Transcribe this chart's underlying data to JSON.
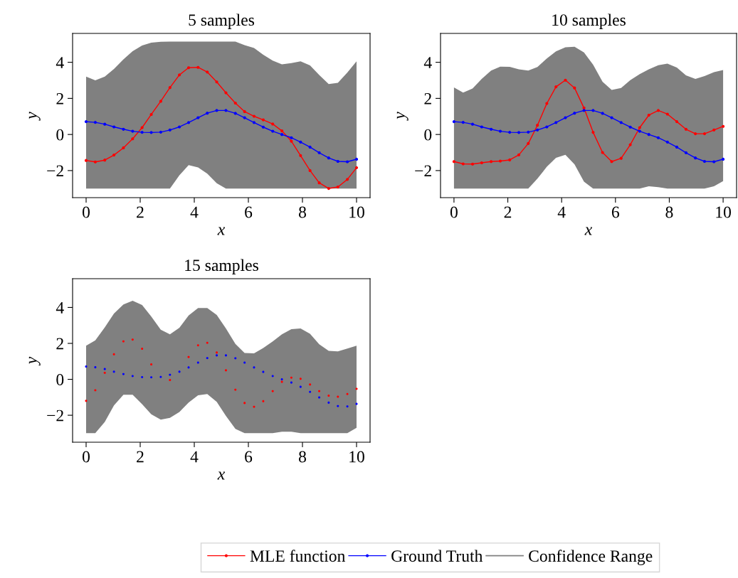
{
  "chart_data": [
    {
      "type": "line",
      "title": "5 samples",
      "xlabel": "x",
      "ylabel": "y",
      "marker": "circle",
      "line_style": "solid",
      "grid": false,
      "legend": "bottom",
      "x": [
        0,
        0.34,
        0.69,
        1.03,
        1.38,
        1.72,
        2.07,
        2.41,
        2.76,
        3.1,
        3.45,
        3.79,
        4.14,
        4.48,
        4.83,
        5.17,
        5.52,
        5.86,
        6.21,
        6.55,
        6.9,
        7.24,
        7.59,
        7.93,
        8.28,
        8.62,
        8.97,
        9.31,
        9.66,
        10
      ],
      "xlim": [
        -0.5,
        10.5
      ],
      "xticks": [
        0,
        2,
        4,
        6,
        8,
        10
      ],
      "ylim": [
        -3.5,
        5.6
      ],
      "yticks": [
        -2,
        0,
        2,
        4
      ],
      "series": [
        {
          "name": "MLE function",
          "color": "#ff0000",
          "values": [
            -1.44,
            -1.52,
            -1.42,
            -1.14,
            -0.74,
            -0.24,
            0.38,
            1.11,
            1.84,
            2.6,
            3.3,
            3.7,
            3.72,
            3.46,
            2.91,
            2.31,
            1.74,
            1.27,
            1.01,
            0.81,
            0.58,
            0.2,
            -0.37,
            -1.17,
            -2.0,
            -2.68,
            -2.99,
            -2.91,
            -2.49,
            -1.84
          ]
        },
        {
          "name": "Ground Truth",
          "color": "#0000ff",
          "values": [
            0.71,
            0.67,
            0.57,
            0.42,
            0.29,
            0.18,
            0.12,
            0.11,
            0.13,
            0.25,
            0.42,
            0.66,
            0.93,
            1.18,
            1.33,
            1.33,
            1.17,
            0.93,
            0.66,
            0.41,
            0.18,
            0.0,
            -0.18,
            -0.42,
            -0.7,
            -1.01,
            -1.3,
            -1.49,
            -1.51,
            -1.37
          ]
        },
        {
          "name": "Confidence Range",
          "color": "#808080",
          "values": [
            null,
            null,
            null,
            null,
            null,
            null,
            null,
            null,
            null,
            null,
            null,
            null,
            null,
            null,
            null,
            null,
            null,
            null,
            null,
            null,
            null,
            null,
            null,
            null,
            null,
            null,
            null,
            null,
            null,
            null
          ],
          "lower": [
            -3,
            -3,
            -3,
            -3,
            -3,
            -3,
            -3,
            -3,
            -3,
            -3,
            -2.26,
            -1.7,
            -1.83,
            -2.17,
            -2.7,
            -3,
            -3,
            -3,
            -3,
            -3,
            -3,
            -3,
            -3,
            -3,
            -3,
            -3,
            -3,
            -3,
            -3,
            -3
          ],
          "upper": [
            3.21,
            3.0,
            3.21,
            3.63,
            4.16,
            4.62,
            4.93,
            5.09,
            5.14,
            5.15,
            5.15,
            5.15,
            5.15,
            5.15,
            5.15,
            5.15,
            5.15,
            4.95,
            4.79,
            4.42,
            4.09,
            3.89,
            3.96,
            4.05,
            3.83,
            3.3,
            2.79,
            2.86,
            3.43,
            4.05
          ]
        }
      ]
    },
    {
      "type": "line",
      "title": "10 samples",
      "xlabel": "x",
      "ylabel": "y",
      "marker": "circle",
      "line_style": "solid",
      "grid": false,
      "x": [
        0,
        0.34,
        0.69,
        1.03,
        1.38,
        1.72,
        2.07,
        2.41,
        2.76,
        3.1,
        3.45,
        3.79,
        4.14,
        4.48,
        4.83,
        5.17,
        5.52,
        5.86,
        6.21,
        6.55,
        6.9,
        7.24,
        7.59,
        7.93,
        8.28,
        8.62,
        8.97,
        9.31,
        9.66,
        10
      ],
      "xlim": [
        -0.5,
        10.5
      ],
      "xticks": [
        0,
        2,
        4,
        6,
        8,
        10
      ],
      "ylim": [
        -3.5,
        5.6
      ],
      "yticks": [
        -2,
        0,
        2,
        4
      ],
      "series": [
        {
          "color": "#808080",
          "values": [
            null,
            null,
            null,
            null,
            null,
            null,
            null,
            null,
            null,
            null,
            null,
            null,
            null,
            null,
            null,
            null,
            null,
            null,
            null,
            null,
            null,
            null,
            null,
            null,
            null,
            null,
            null,
            null,
            null,
            null
          ],
          "lower": [
            -3,
            -3,
            -3,
            -3,
            -3,
            -3,
            -3,
            -3,
            -3,
            -2.45,
            -1.79,
            -1.29,
            -1.13,
            -1.66,
            -2.61,
            -3,
            -3,
            -3,
            -3,
            -3,
            -3,
            -2.87,
            -2.92,
            -3,
            -3,
            -3,
            -3,
            -3,
            -2.87,
            -2.58
          ],
          "upper": [
            2.61,
            2.32,
            2.55,
            3.08,
            3.54,
            3.76,
            3.75,
            3.61,
            3.54,
            3.74,
            4.21,
            4.61,
            4.83,
            4.86,
            4.55,
            3.87,
            2.92,
            2.47,
            2.58,
            3.01,
            3.34,
            3.61,
            3.84,
            3.93,
            3.71,
            3.28,
            3.08,
            3.24,
            3.45,
            3.57
          ]
        },
        {
          "color": "#ff0000",
          "values": [
            -1.5,
            -1.63,
            -1.64,
            -1.57,
            -1.5,
            -1.47,
            -1.41,
            -1.13,
            -0.5,
            0.51,
            1.72,
            2.64,
            3.01,
            2.58,
            1.47,
            0.12,
            -1.0,
            -1.5,
            -1.32,
            -0.57,
            0.38,
            1.07,
            1.33,
            1.13,
            0.71,
            0.29,
            0.04,
            0.04,
            0.25,
            0.45
          ]
        },
        {
          "color": "#0000ff",
          "values": [
            0.71,
            0.67,
            0.57,
            0.42,
            0.29,
            0.18,
            0.12,
            0.11,
            0.13,
            0.25,
            0.42,
            0.66,
            0.93,
            1.18,
            1.33,
            1.33,
            1.17,
            0.93,
            0.66,
            0.41,
            0.18,
            0.0,
            -0.18,
            -0.42,
            -0.7,
            -1.01,
            -1.3,
            -1.49,
            -1.51,
            -1.37
          ]
        }
      ]
    },
    {
      "type": "scatter",
      "title": "15 samples",
      "xlabel": "x",
      "ylabel": "y",
      "marker": "circle",
      "grid": false,
      "x": [
        0,
        0.34,
        0.69,
        1.03,
        1.38,
        1.72,
        2.07,
        2.41,
        2.76,
        3.1,
        3.45,
        3.79,
        4.14,
        4.48,
        4.83,
        5.17,
        5.52,
        5.86,
        6.21,
        6.55,
        6.9,
        7.24,
        7.59,
        7.93,
        8.28,
        8.62,
        8.97,
        9.31,
        9.66,
        10
      ],
      "xlim": [
        -0.5,
        10.5
      ],
      "xticks": [
        0,
        2,
        4,
        6,
        8,
        10
      ],
      "ylim": [
        -3.5,
        5.6
      ],
      "yticks": [
        -2,
        0,
        2,
        4
      ],
      "series": [
        {
          "color": "#808080",
          "values": [
            null,
            null,
            null,
            null,
            null,
            null,
            null,
            null,
            null,
            null,
            null,
            null,
            null,
            null,
            null,
            null,
            null,
            null,
            null,
            null,
            null,
            null,
            null,
            null,
            null,
            null,
            null,
            null,
            null,
            null
          ],
          "lower": [
            -3,
            -3,
            -2.37,
            -1.45,
            -0.86,
            -0.86,
            -1.38,
            -1.95,
            -2.24,
            -2.14,
            -1.82,
            -1.29,
            -0.89,
            -0.82,
            -1.25,
            -2.04,
            -2.76,
            -3,
            -3,
            -3,
            -3,
            -2.92,
            -2.92,
            -3,
            -3,
            -3,
            -3,
            -3,
            -3,
            -2.7
          ],
          "upper": [
            1.87,
            2.17,
            2.89,
            3.66,
            4.17,
            4.37,
            4.14,
            3.49,
            2.76,
            2.5,
            2.87,
            3.55,
            3.97,
            3.97,
            3.58,
            2.83,
            1.97,
            1.47,
            1.45,
            1.74,
            2.11,
            2.5,
            2.79,
            2.83,
            2.53,
            1.95,
            1.58,
            1.55,
            1.71,
            1.87
          ]
        },
        {
          "color": "#ff0000",
          "values": [
            -1.2,
            -0.61,
            0.36,
            1.39,
            2.11,
            2.21,
            1.7,
            0.83,
            null,
            -0.04,
            null,
            1.24,
            1.89,
            2.03,
            1.49,
            0.5,
            -0.58,
            -1.32,
            -1.53,
            -1.22,
            -0.66,
            -0.14,
            0.09,
            0.03,
            -0.29,
            -0.66,
            -0.91,
            -0.97,
            -0.82,
            -0.53
          ]
        },
        {
          "color": "#0000ff",
          "values": [
            0.71,
            0.67,
            0.57,
            0.42,
            0.29,
            0.18,
            0.12,
            0.11,
            0.13,
            0.25,
            0.42,
            0.66,
            0.93,
            1.18,
            1.33,
            1.33,
            1.17,
            0.93,
            0.66,
            0.41,
            0.18,
            0.0,
            -0.18,
            -0.42,
            -0.7,
            -1.01,
            -1.3,
            -1.49,
            -1.51,
            -1.37
          ]
        }
      ]
    }
  ]
}
